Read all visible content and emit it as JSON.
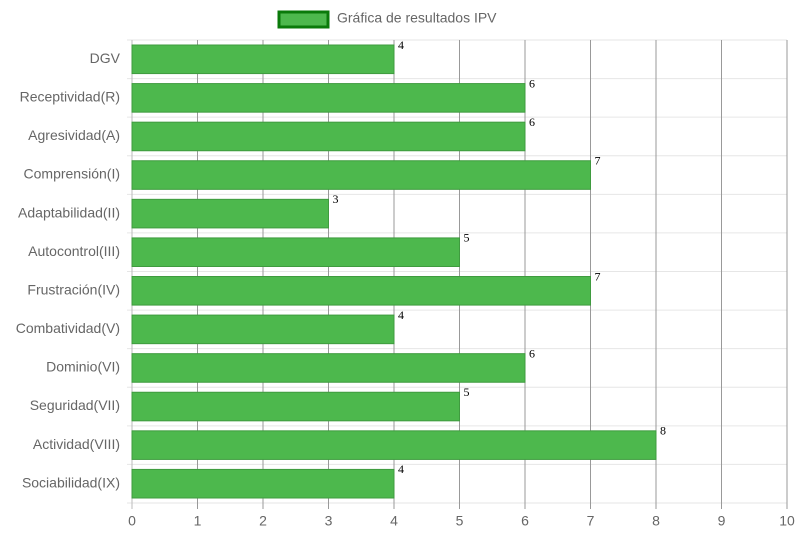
{
  "chart_data": {
    "type": "bar",
    "orientation": "horizontal",
    "legend": "top",
    "categories": [
      "DGV",
      "Receptividad(R)",
      "Agresividad(A)",
      "Comprensión(I)",
      "Adaptabilidad(II)",
      "Autocontrol(III)",
      "Frustración(IV)",
      "Combatividad(V)",
      "Dominio(VI)",
      "Seguridad(VII)",
      "Actividad(VIII)",
      "Sociabilidad(IX)"
    ],
    "series": [
      {
        "name": "Gráfica de resultados IPV",
        "color": "#4db84d",
        "values": [
          4,
          6,
          6,
          7,
          3,
          5,
          7,
          4,
          6,
          5,
          8,
          4
        ]
      }
    ],
    "xlim": [
      0,
      10
    ],
    "xticks": [
      0,
      1,
      2,
      3,
      4,
      5,
      6,
      7,
      8,
      9,
      10
    ],
    "grid": true
  }
}
